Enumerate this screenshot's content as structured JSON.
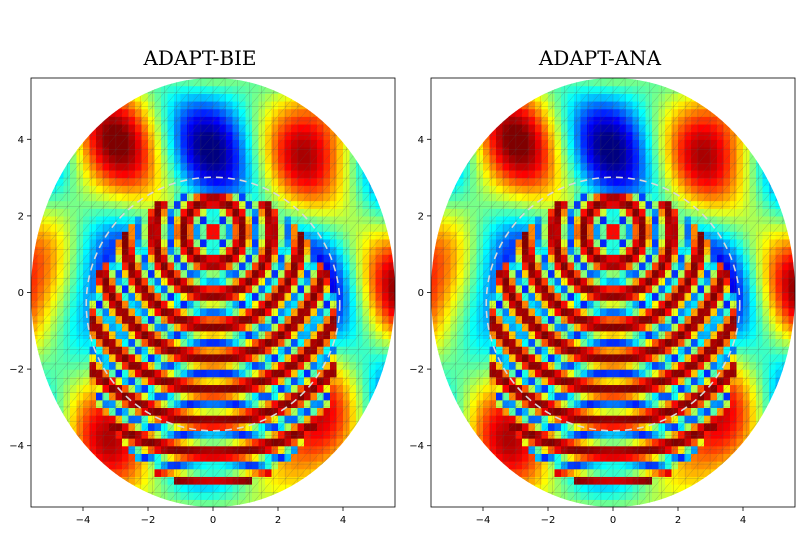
{
  "figure": {
    "panels": [
      {
        "title": "ADAPT-BIE"
      },
      {
        "title": "ADAPT-ANA"
      }
    ],
    "x_ticks": [
      "−4",
      "−2",
      "0",
      "2",
      "4"
    ],
    "y_ticks": [
      "4",
      "2",
      "0",
      "−2",
      "−4"
    ],
    "colormap": "jet",
    "colors": {
      "mesh_lines": "#555555",
      "scatterer_outline": "#d9d9d9",
      "axes_frame": "#000000"
    }
  }
}
